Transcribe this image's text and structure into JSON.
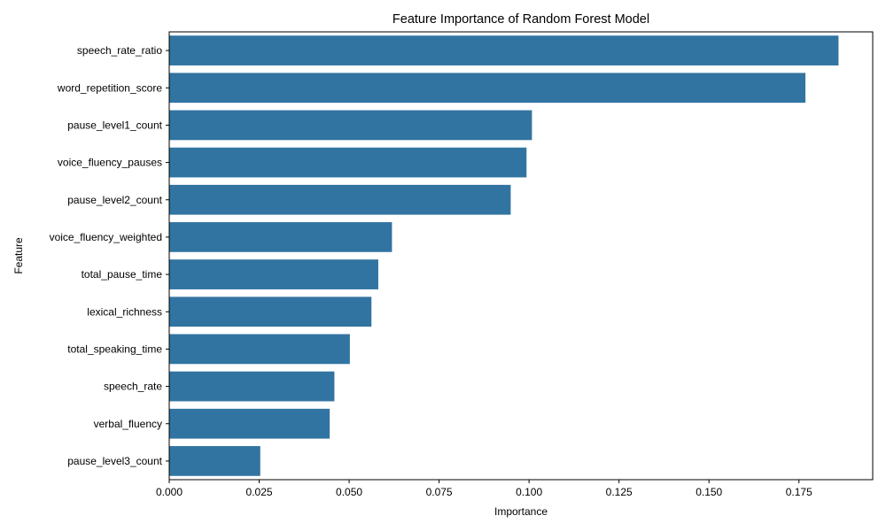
{
  "chart_data": {
    "type": "bar",
    "orientation": "horizontal",
    "title": "Feature Importance of Random Forest Model",
    "xlabel": "Importance",
    "ylabel": "Feature",
    "xlim": [
      0,
      0.1955
    ],
    "xticks": [
      0.0,
      0.025,
      0.05,
      0.075,
      0.1,
      0.125,
      0.15,
      0.175
    ],
    "xtick_labels": [
      "0.000",
      "0.025",
      "0.050",
      "0.075",
      "0.100",
      "0.125",
      "0.150",
      "0.175"
    ],
    "categories": [
      "speech_rate_ratio",
      "word_repetition_score",
      "pause_level1_count",
      "voice_fluency_pauses",
      "pause_level2_count",
      "voice_fluency_weighted",
      "total_pause_time",
      "lexical_richness",
      "total_speaking_time",
      "speech_rate",
      "verbal_fluency",
      "pause_level3_count"
    ],
    "values": [
      0.186,
      0.1768,
      0.1008,
      0.0993,
      0.0949,
      0.0619,
      0.0581,
      0.0562,
      0.0502,
      0.0459,
      0.0446,
      0.0253
    ],
    "bar_color": "#3274a1",
    "grid": false,
    "legend": "none"
  }
}
